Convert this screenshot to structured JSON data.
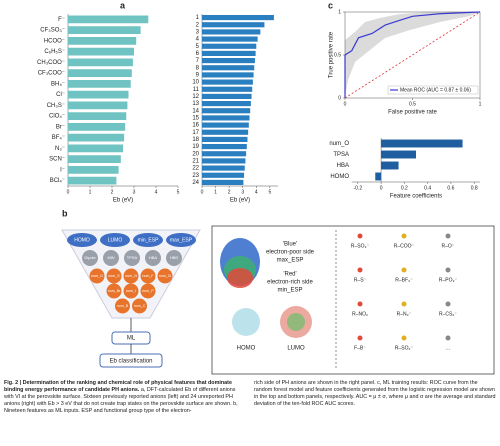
{
  "panels": [
    "a",
    "b",
    "c"
  ],
  "chart_data": [
    {
      "type": "hbar",
      "categories": [
        "F⁻",
        "CF₃SO₃⁻",
        "HCOO⁻",
        "C₆H₅S⁻",
        "CH₃COO⁻",
        "CF₃COO⁻",
        "BH₄⁻",
        "Cl⁻",
        "CH₃S⁻",
        "ClO₄⁻",
        "Br⁻",
        "BF₄⁻",
        "N₃⁻",
        "SCN⁻",
        "I⁻",
        "BCl₄⁻"
      ],
      "values": [
        3.65,
        3.3,
        3.1,
        3.0,
        2.95,
        2.9,
        2.85,
        2.75,
        2.7,
        2.65,
        2.6,
        2.55,
        2.5,
        2.4,
        2.3,
        2.2
      ],
      "color": "#6fc3c3",
      "xlim": [
        0,
        5
      ],
      "xticks": [
        0,
        1,
        2,
        3,
        4,
        5
      ],
      "xlabel": "Eb (eV)"
    },
    {
      "type": "hbar",
      "categories": [
        "1",
        "2",
        "3",
        "4",
        "5",
        "6",
        "7",
        "8",
        "9",
        "10",
        "11",
        "12",
        "13",
        "14",
        "15",
        "16",
        "17",
        "18",
        "19",
        "20",
        "21",
        "22",
        "23",
        "24"
      ],
      "values": [
        5.3,
        4.6,
        4.3,
        4.1,
        4.0,
        3.95,
        3.9,
        3.85,
        3.8,
        3.75,
        3.7,
        3.65,
        3.6,
        3.55,
        3.5,
        3.45,
        3.4,
        3.35,
        3.3,
        3.25,
        3.2,
        3.15,
        3.1,
        3.05
      ],
      "color": "#2a7fc0",
      "xlim": [
        0,
        5.6
      ],
      "xticks": [
        0,
        1,
        2,
        3,
        4,
        5
      ],
      "xlabel": "Eb (eV)"
    },
    {
      "type": "line",
      "x": [
        0,
        0,
        0.05,
        0.1,
        0.2,
        0.3,
        0.4,
        0.5,
        0.7,
        1
      ],
      "series": [
        {
          "name": "Mean ROC (AUC = 0.87 ± 0.06)",
          "color": "#3a3ad0",
          "values": [
            0,
            0.5,
            0.55,
            0.7,
            0.75,
            0.85,
            0.9,
            0.95,
            0.98,
            1
          ]
        }
      ],
      "xlim": [
        0,
        1
      ],
      "ylim": [
        0,
        1
      ],
      "xticks": [
        0,
        0.5,
        1
      ],
      "yticks": [
        0,
        0.5,
        1
      ],
      "xlabel": "False positive rate",
      "ylabel": "True positive rate",
      "legend": "lower-right"
    },
    {
      "type": "hbar",
      "categories": [
        "num_O",
        "TPSA",
        "HBA",
        "HOMO"
      ],
      "values": [
        0.7,
        0.3,
        0.15,
        -0.05
      ],
      "color": "#1f5fa0",
      "xlim": [
        -0.25,
        0.85
      ],
      "xticks": [
        -0.2,
        0,
        0.2,
        0.4,
        0.6,
        0.8
      ],
      "xlabel": "Feature coefficients"
    }
  ],
  "diagram": {
    "blue_features": [
      "HOMO",
      "LUMO",
      "min_ESP",
      "max_ESP"
    ],
    "grey_features": [
      "Dipole",
      "MW",
      "TPSA",
      "HBA",
      "HBD"
    ],
    "orange_features": [
      "num_O",
      "num_S",
      "num_N",
      "num_F",
      "num_Cl",
      "num_Br",
      "num_I",
      "num_P",
      "num_B",
      "num_C"
    ],
    "ml": "ML",
    "output": "Eb classification",
    "esp": [
      "'Blue'",
      "electron-poor side",
      "max_ESP",
      "'Red'",
      "electron-rich side",
      "min_ESP"
    ],
    "orbitals": [
      "HOMO",
      "LUMO"
    ],
    "structures": [
      "R–SO₃⁻",
      "R–COO⁻",
      "R–O⁻",
      "R–S⁻",
      "R–BF₃⁻",
      "R–PO₃⁻",
      "R–NO₂",
      "R–N₃⁻",
      "R–CS₂⁻",
      "F–B⁻",
      "R–SO₂⁻",
      "..."
    ]
  },
  "caption": {
    "title": "Fig. 2 | Determination of the ranking and chemical role of physical features that dominate binding energy performance of candidate PH anions.",
    "left": "a, DFT-calculated Eb of different anions with VI at the perovskite surface. Sixteen previously reported anions (left) and 24 unreported PH anions (right) with Eb > 3 eV that do not create trap states on the perovskite surface are shown. b, Nineteen features as ML inputs. ESP and functional group type of the electron-",
    "right": "rich side of PH anions are shown in the right panel. c, ML training results: ROC curve from the random forest model and feature coefficients generated from the logistic regression model are shown in the top and bottom panels, respectively. AUC = μ ± σ, where μ and σ are the average and standard deviation of the ten-fold ROC AUC scores."
  }
}
